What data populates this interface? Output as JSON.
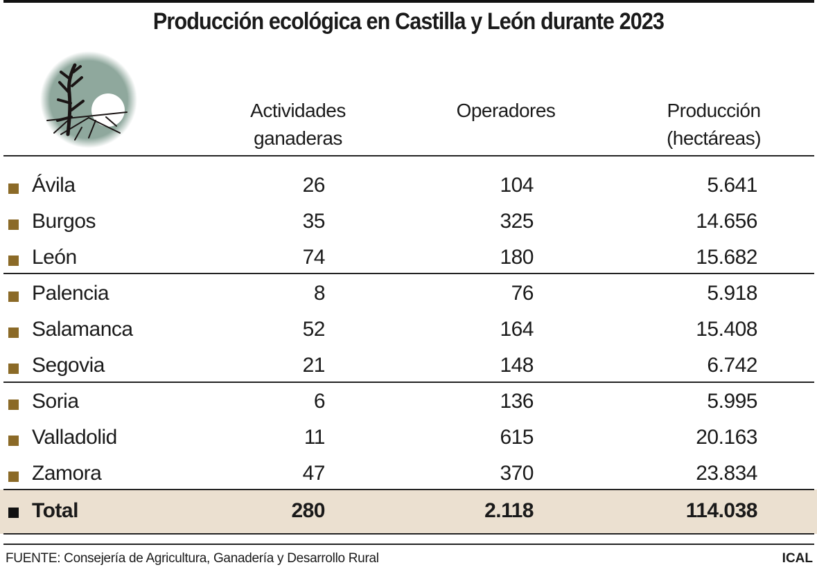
{
  "title": "Producción ecológica en Castilla y León durante 2023",
  "logo_icon": "tree-sun-landscape-icon",
  "colors": {
    "bullet": "#8b6a27",
    "total_band": "#ebe0d0",
    "logo_circle": "#8fa89d"
  },
  "chart_data": {
    "type": "table",
    "title": "Producción ecológica en Castilla y León durante 2023",
    "columns": [
      {
        "line1": "Actividades",
        "line2": "ganaderas"
      },
      {
        "line1": "Operadores",
        "line2": ""
      },
      {
        "line1": "Producción",
        "line2": "(hectáreas)"
      }
    ],
    "rows": [
      {
        "name": "Ávila",
        "actividades": "26",
        "operadores": "104",
        "produccion": "5.641"
      },
      {
        "name": "Burgos",
        "actividades": "35",
        "operadores": "325",
        "produccion": "14.656"
      },
      {
        "name": "León",
        "actividades": "74",
        "operadores": "180",
        "produccion": "15.682"
      },
      {
        "name": "Palencia",
        "actividades": "8",
        "operadores": "76",
        "produccion": "5.918"
      },
      {
        "name": "Salamanca",
        "actividades": "52",
        "operadores": "164",
        "produccion": "15.408"
      },
      {
        "name": "Segovia",
        "actividades": "21",
        "operadores": "148",
        "produccion": "6.742"
      },
      {
        "name": "Soria",
        "actividades": "6",
        "operadores": "136",
        "produccion": "5.995"
      },
      {
        "name": "Valladolid",
        "actividades": "11",
        "operadores": "615",
        "produccion": "20.163"
      },
      {
        "name": "Zamora",
        "actividades": "47",
        "operadores": "370",
        "produccion": "23.834"
      }
    ],
    "total": {
      "name": "Total",
      "actividades": "280",
      "operadores": "2.118",
      "produccion": "114.038"
    }
  },
  "footer": {
    "source": "FUENTE: Consejería de Agricultura, Ganadería y Desarrollo Rural",
    "brand": "ICAL"
  }
}
